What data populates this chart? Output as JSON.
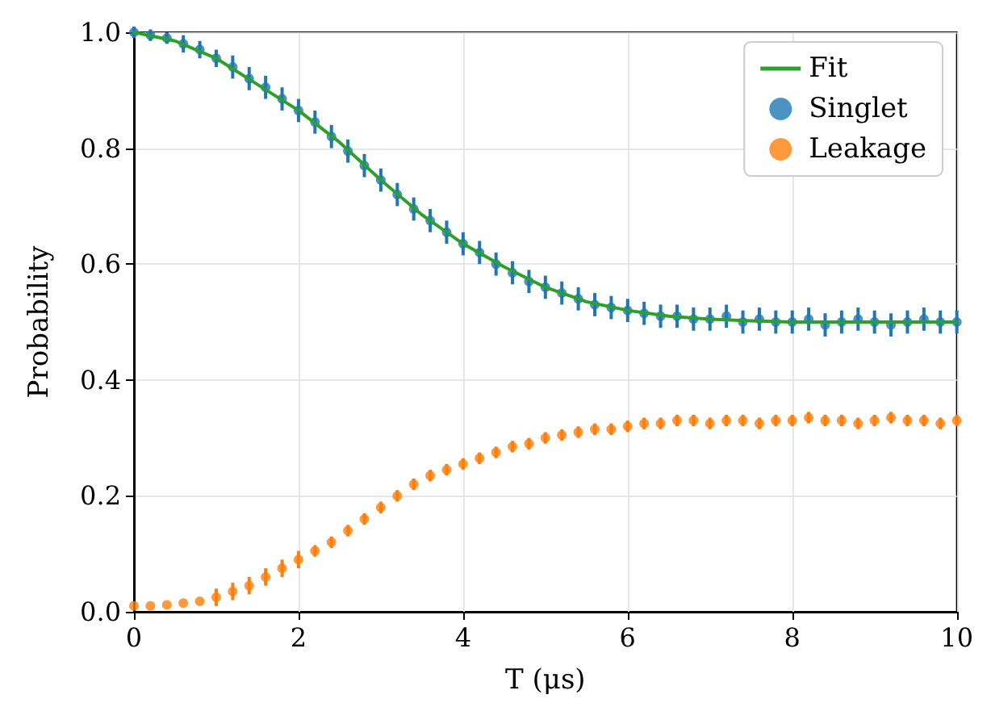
{
  "chart_data": {
    "type": "scatter",
    "xlabel": "T (μs)",
    "ylabel": "Probability",
    "xlim": [
      0,
      10
    ],
    "ylim": [
      0,
      1
    ],
    "xticks": [
      0,
      2,
      4,
      6,
      8,
      10
    ],
    "yticks": [
      {
        "value": 0,
        "label": "0.0"
      },
      {
        "value": 0.2,
        "label": "0.2"
      },
      {
        "value": 0.4,
        "label": "0.4"
      },
      {
        "value": 0.6,
        "label": "0.6"
      },
      {
        "value": 0.8,
        "label": "0.8"
      },
      {
        "value": 1,
        "label": "1.0"
      }
    ],
    "grid": true,
    "legend": "top right",
    "marker": "circle",
    "series": [
      {
        "name": "Fit",
        "type": "line",
        "marker": "none",
        "line_style": "solid",
        "color": "#2ca02c",
        "x": [
          0,
          0.5,
          1,
          1.5,
          2,
          2.5,
          3,
          3.5,
          4,
          4.5,
          5,
          5.5,
          6,
          6.5,
          7,
          7.5,
          8,
          8.5,
          9,
          9.5,
          10
        ],
        "values": [
          1.0,
          0.985,
          0.955,
          0.91,
          0.865,
          0.81,
          0.745,
          0.685,
          0.635,
          0.595,
          0.56,
          0.535,
          0.52,
          0.51,
          0.505,
          0.502,
          0.5,
          0.5,
          0.5,
          0.5,
          0.5
        ]
      },
      {
        "name": "Singlet",
        "color": "#1f77b4",
        "x": [
          0,
          0.2,
          0.4,
          0.6,
          0.8,
          1,
          1.2,
          1.4,
          1.6,
          1.8,
          2,
          2.2,
          2.4,
          2.6,
          2.8,
          3,
          3.2,
          3.4,
          3.6,
          3.8,
          4,
          4.2,
          4.4,
          4.6,
          4.8,
          5,
          5.2,
          5.4,
          5.6,
          5.8,
          6,
          6.2,
          6.4,
          6.6,
          6.8,
          7,
          7.2,
          7.4,
          7.6,
          7.8,
          8,
          8.2,
          8.4,
          8.6,
          8.8,
          9,
          9.2,
          9.4,
          9.6,
          9.8,
          10
        ],
        "values": [
          1.0,
          0.995,
          0.99,
          0.98,
          0.97,
          0.955,
          0.94,
          0.92,
          0.905,
          0.885,
          0.865,
          0.845,
          0.82,
          0.795,
          0.77,
          0.745,
          0.72,
          0.695,
          0.675,
          0.655,
          0.635,
          0.62,
          0.6,
          0.585,
          0.57,
          0.56,
          0.55,
          0.54,
          0.53,
          0.525,
          0.52,
          0.515,
          0.51,
          0.51,
          0.505,
          0.505,
          0.51,
          0.5,
          0.505,
          0.5,
          0.5,
          0.505,
          0.495,
          0.5,
          0.505,
          0.5,
          0.495,
          0.5,
          0.505,
          0.5,
          0.5
        ],
        "errors": [
          0.01,
          0.01,
          0.01,
          0.015,
          0.015,
          0.015,
          0.02,
          0.02,
          0.02,
          0.02,
          0.02,
          0.02,
          0.02,
          0.02,
          0.02,
          0.02,
          0.02,
          0.02,
          0.02,
          0.02,
          0.02,
          0.02,
          0.02,
          0.02,
          0.02,
          0.02,
          0.02,
          0.02,
          0.02,
          0.02,
          0.02,
          0.02,
          0.02,
          0.02,
          0.02,
          0.02,
          0.02,
          0.02,
          0.02,
          0.02,
          0.02,
          0.02,
          0.02,
          0.02,
          0.02,
          0.02,
          0.02,
          0.02,
          0.02,
          0.02,
          0.02
        ]
      },
      {
        "name": "Leakage",
        "color": "#ff7f0e",
        "x": [
          0,
          0.2,
          0.4,
          0.6,
          0.8,
          1,
          1.2,
          1.4,
          1.6,
          1.8,
          2,
          2.2,
          2.4,
          2.6,
          2.8,
          3,
          3.2,
          3.4,
          3.6,
          3.8,
          4,
          4.2,
          4.4,
          4.6,
          4.8,
          5,
          5.2,
          5.4,
          5.6,
          5.8,
          6,
          6.2,
          6.4,
          6.6,
          6.8,
          7,
          7.2,
          7.4,
          7.6,
          7.8,
          8,
          8.2,
          8.4,
          8.6,
          8.8,
          9,
          9.2,
          9.4,
          9.6,
          9.8,
          10
        ],
        "values": [
          0.01,
          0.01,
          0.012,
          0.015,
          0.018,
          0.025,
          0.035,
          0.045,
          0.06,
          0.075,
          0.09,
          0.105,
          0.12,
          0.14,
          0.16,
          0.18,
          0.2,
          0.22,
          0.235,
          0.245,
          0.255,
          0.265,
          0.275,
          0.285,
          0.29,
          0.3,
          0.305,
          0.31,
          0.315,
          0.315,
          0.32,
          0.325,
          0.325,
          0.33,
          0.33,
          0.325,
          0.33,
          0.33,
          0.325,
          0.33,
          0.33,
          0.335,
          0.33,
          0.33,
          0.325,
          0.33,
          0.335,
          0.33,
          0.33,
          0.325,
          0.33
        ],
        "errors": [
          null,
          null,
          null,
          null,
          null,
          0.015,
          0.015,
          0.015,
          0.015,
          0.015,
          0.015,
          0.01,
          0.01,
          0.01,
          0.01,
          0.01,
          0.01,
          0.01,
          0.01,
          0.01,
          0.01,
          0.01,
          0.01,
          0.01,
          0.01,
          0.01,
          0.01,
          0.01,
          0.01,
          0.01,
          0.01,
          0.01,
          0.01,
          0.01,
          0.01,
          0.01,
          0.01,
          0.01,
          0.01,
          0.01,
          0.01,
          0.01,
          0.01,
          0.01,
          0.01,
          0.01,
          0.01,
          0.01,
          0.01,
          0.01,
          0.01
        ]
      }
    ]
  }
}
